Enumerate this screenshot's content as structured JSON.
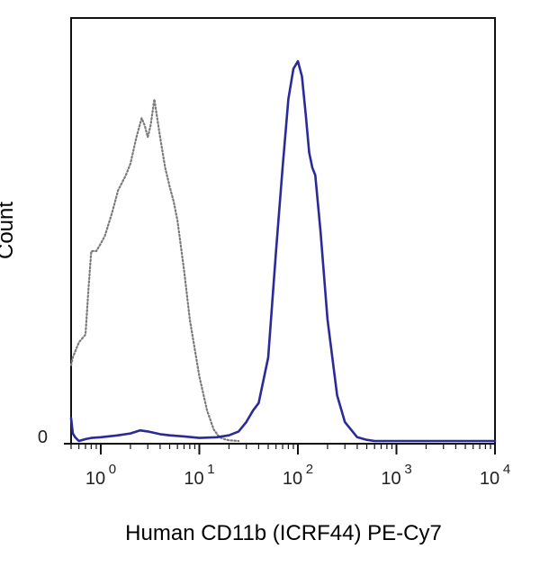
{
  "chart_data": {
    "type": "line",
    "title": "",
    "xlabel": "Human CD11b (ICRF44) PE-Cy7",
    "ylabel": "Count",
    "x_scale": "log",
    "xlim": [
      0.5,
      10000
    ],
    "ylim": [
      0,
      100
    ],
    "x_ticks": [
      {
        "value": 1,
        "base": "10",
        "exp": "0"
      },
      {
        "value": 10,
        "base": "10",
        "exp": "1"
      },
      {
        "value": 100,
        "base": "10",
        "exp": "2"
      },
      {
        "value": 1000,
        "base": "10",
        "exp": "3"
      },
      {
        "value": 10000,
        "base": "10",
        "exp": "4"
      }
    ],
    "y_ticks": [
      {
        "value": 0,
        "label": "0"
      }
    ],
    "grid": false,
    "series": [
      {
        "color": "#7a7a7a",
        "style": "dotted",
        "x": [
          0.5,
          0.52,
          0.6,
          0.7,
          0.75,
          0.8,
          0.9,
          1.0,
          1.1,
          1.3,
          1.5,
          1.8,
          2.0,
          2.3,
          2.6,
          2.8,
          3.0,
          3.2,
          3.5,
          4.0,
          4.5,
          5.0,
          5.5,
          6.0,
          7.0,
          8.0,
          10.0,
          12.0,
          14.0,
          16.0,
          18.0,
          20.0,
          25.0
        ],
        "y": [
          20,
          22,
          26,
          28,
          40,
          50,
          50,
          52,
          54,
          60,
          66,
          70,
          73,
          80,
          85,
          83,
          80,
          83,
          90,
          80,
          72,
          67,
          63,
          58,
          45,
          32,
          17,
          8,
          3,
          1,
          0.5,
          0.2,
          0
        ]
      },
      {
        "color": "#2a2a9a",
        "style": "solid",
        "x": [
          0.5,
          0.52,
          0.55,
          0.6,
          0.7,
          0.8,
          1.0,
          1.5,
          2.0,
          2.5,
          3.0,
          4.0,
          5.0,
          7.0,
          10.0,
          15.0,
          20.0,
          25.0,
          30.0,
          35.0,
          40.0,
          50.0,
          60.0,
          70.0,
          80.0,
          90.0,
          100.0,
          110.0,
          120.0,
          130.0,
          140.0,
          150.0,
          170.0,
          200.0,
          250.0,
          300.0,
          400.0,
          500.0,
          600.0,
          1000.0,
          3000.0,
          10000.0
        ],
        "y": [
          6,
          2,
          1,
          0,
          0.5,
          0.8,
          1,
          1.5,
          2,
          2.8,
          2.5,
          1.8,
          1.5,
          1.2,
          0.8,
          1,
          1.5,
          2.5,
          5,
          8,
          10,
          22,
          50,
          72,
          90,
          98,
          100,
          96,
          86,
          76,
          72,
          70,
          55,
          32,
          12,
          5,
          1,
          0.3,
          0,
          0,
          0,
          0
        ]
      }
    ]
  }
}
